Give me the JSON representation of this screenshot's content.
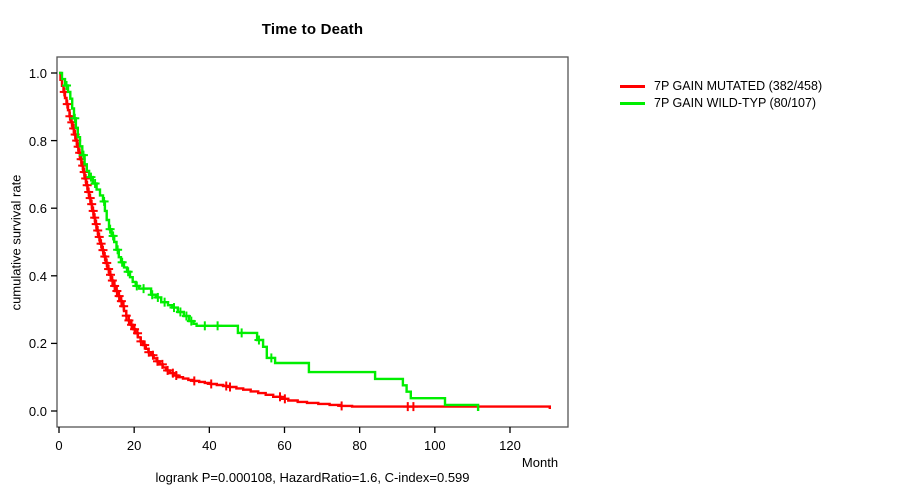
{
  "title": "Time to Death",
  "axes": {
    "x": {
      "label": "Month",
      "ticks": [
        0,
        20,
        40,
        60,
        80,
        100,
        120
      ]
    },
    "y": {
      "label": "cumulative survival rate",
      "ticks": [
        "0.0",
        "0.2",
        "0.4",
        "0.6",
        "0.8",
        "1.0"
      ]
    }
  },
  "legend": {
    "items": [
      {
        "label": "7P GAIN MUTATED (382/458)",
        "color": "#ff0000"
      },
      {
        "label": "7P GAIN WILD-TYP (80/107)",
        "color": "#00ee00"
      }
    ]
  },
  "footer": {
    "stats": "logrank P=0.000108, HazardRatio=1.6, C-index=0.599"
  },
  "chart_data": {
    "type": "line",
    "subtype": "kaplan-meier-step",
    "title": "Time to Death",
    "xlabel": "Month",
    "ylabel": "cumulative survival rate",
    "xlim": [
      0,
      135
    ],
    "ylim": [
      0.0,
      1.0
    ],
    "x_ticks": [
      0,
      20,
      40,
      60,
      80,
      100,
      120
    ],
    "y_ticks": [
      0.0,
      0.2,
      0.4,
      0.6,
      0.8,
      1.0
    ],
    "grid": false,
    "legend_position": "right-outside",
    "annotation": "logrank P=0.000108, HazardRatio=1.6, C-index=0.599",
    "series": [
      {
        "name": "7P GAIN MUTATED (382/458)",
        "color": "#ff0000",
        "steps": [
          [
            0,
            1.0
          ],
          [
            0.4,
            0.98
          ],
          [
            0.8,
            0.962
          ],
          [
            1.2,
            0.944
          ],
          [
            1.6,
            0.926
          ],
          [
            2,
            0.908
          ],
          [
            2.4,
            0.89
          ],
          [
            2.8,
            0.872
          ],
          [
            3.2,
            0.854
          ],
          [
            3.6,
            0.836
          ],
          [
            4,
            0.818
          ],
          [
            4.4,
            0.8
          ],
          [
            4.8,
            0.782
          ],
          [
            5.2,
            0.764
          ],
          [
            5.6,
            0.745
          ],
          [
            6,
            0.726
          ],
          [
            6.4,
            0.707
          ],
          [
            6.8,
            0.688
          ],
          [
            7.2,
            0.668
          ],
          [
            7.6,
            0.648
          ],
          [
            8,
            0.63
          ],
          [
            8.4,
            0.612
          ],
          [
            8.8,
            0.592
          ],
          [
            9.2,
            0.572
          ],
          [
            9.6,
            0.553
          ],
          [
            10,
            0.534
          ],
          [
            10.4,
            0.515
          ],
          [
            10.9,
            0.495
          ],
          [
            11.4,
            0.476
          ],
          [
            11.9,
            0.457
          ],
          [
            12.4,
            0.438
          ],
          [
            12.9,
            0.42
          ],
          [
            13.4,
            0.403
          ],
          [
            13.9,
            0.386
          ],
          [
            14.4,
            0.37
          ],
          [
            14.9,
            0.355
          ],
          [
            15.5,
            0.34
          ],
          [
            16.1,
            0.325
          ],
          [
            16.7,
            0.31
          ],
          [
            17.3,
            0.296
          ],
          [
            17.9,
            0.282
          ],
          [
            18.5,
            0.268
          ],
          [
            19.1,
            0.255
          ],
          [
            19.7,
            0.242
          ],
          [
            20.3,
            0.23
          ],
          [
            21,
            0.218
          ],
          [
            21.7,
            0.206
          ],
          [
            22.4,
            0.195
          ],
          [
            23.1,
            0.184
          ],
          [
            23.8,
            0.174
          ],
          [
            24.5,
            0.165
          ],
          [
            25.2,
            0.156
          ],
          [
            26,
            0.147
          ],
          [
            26.8,
            0.138
          ],
          [
            27.6,
            0.129
          ],
          [
            28.5,
            0.12
          ],
          [
            29.5,
            0.112
          ],
          [
            30.5,
            0.105
          ],
          [
            31.7,
            0.1
          ],
          [
            33,
            0.096
          ],
          [
            34.4,
            0.092
          ],
          [
            35.8,
            0.089
          ],
          [
            37.3,
            0.086
          ],
          [
            38.8,
            0.083
          ],
          [
            40.4,
            0.08
          ],
          [
            42,
            0.077
          ],
          [
            43.7,
            0.074
          ],
          [
            45.4,
            0.071
          ],
          [
            47.2,
            0.067
          ],
          [
            49,
            0.063
          ],
          [
            51,
            0.058
          ],
          [
            53,
            0.053
          ],
          [
            55,
            0.048
          ],
          [
            57,
            0.042
          ],
          [
            59,
            0.036
          ],
          [
            61,
            0.031
          ],
          [
            63.5,
            0.027
          ],
          [
            66,
            0.024
          ],
          [
            69,
            0.021
          ],
          [
            72,
            0.018
          ],
          [
            75,
            0.015
          ],
          [
            78,
            0.013
          ],
          [
            130.6,
            0.006
          ]
        ],
        "censor_months": [
          1.4,
          2.2,
          2.9,
          3.4,
          3.9,
          4.3,
          4.7,
          5.1,
          5.5,
          5.9,
          6.3,
          6.7,
          7.1,
          7.5,
          7.9,
          8.3,
          8.7,
          9.1,
          9.5,
          9.9,
          10.3,
          10.7,
          11.2,
          11.7,
          12.2,
          12.7,
          13.2,
          13.7,
          14.2,
          14.8,
          15.4,
          16,
          16.6,
          17.2,
          17.9,
          18.6,
          19.3,
          20.1,
          20.9,
          21.8,
          22.8,
          23.9,
          25,
          26.2,
          27.5,
          28.9,
          30.3,
          31.2,
          36,
          40.5,
          44.5,
          45.5,
          58.8,
          60.1,
          75.2,
          92.8,
          94.3
        ]
      },
      {
        "name": "7P GAIN WILD-TYP (80/107)",
        "color": "#00ee00",
        "steps": [
          [
            0,
            1.0
          ],
          [
            0.8,
            0.982
          ],
          [
            1.6,
            0.963
          ],
          [
            2.4,
            0.944
          ],
          [
            3,
            0.924
          ],
          [
            3.5,
            0.895
          ],
          [
            4,
            0.866
          ],
          [
            4.5,
            0.838
          ],
          [
            5,
            0.81
          ],
          [
            5.6,
            0.783
          ],
          [
            6.2,
            0.757
          ],
          [
            6.8,
            0.73
          ],
          [
            7.4,
            0.71
          ],
          [
            8,
            0.692
          ],
          [
            9,
            0.673
          ],
          [
            10,
            0.655
          ],
          [
            10.9,
            0.638
          ],
          [
            11.7,
            0.62
          ],
          [
            12.2,
            0.592
          ],
          [
            12.7,
            0.565
          ],
          [
            13.3,
            0.538
          ],
          [
            14,
            0.518
          ],
          [
            14.7,
            0.5
          ],
          [
            15.3,
            0.477
          ],
          [
            15.9,
            0.455
          ],
          [
            16.5,
            0.44
          ],
          [
            17.3,
            0.425
          ],
          [
            18.1,
            0.412
          ],
          [
            18.9,
            0.396
          ],
          [
            19.6,
            0.382
          ],
          [
            20.4,
            0.37
          ],
          [
            21.3,
            0.362
          ],
          [
            24.5,
            0.344
          ],
          [
            25.8,
            0.336
          ],
          [
            27.2,
            0.322
          ],
          [
            29,
            0.313
          ],
          [
            30.1,
            0.306
          ],
          [
            31.6,
            0.293
          ],
          [
            33.2,
            0.281
          ],
          [
            34.6,
            0.266
          ],
          [
            35.8,
            0.258
          ],
          [
            36.6,
            0.252
          ],
          [
            47.6,
            0.231
          ],
          [
            52.7,
            0.21
          ],
          [
            54.3,
            0.19
          ],
          [
            55.3,
            0.157
          ],
          [
            57.5,
            0.142
          ],
          [
            66.5,
            0.115
          ],
          [
            84.1,
            0.095
          ],
          [
            91.5,
            0.076
          ],
          [
            92.5,
            0.057
          ],
          [
            93.6,
            0.038
          ],
          [
            102.7,
            0.018
          ],
          [
            111.5,
            0
          ]
        ],
        "censor_months": [
          2,
          4.2,
          6.5,
          8.5,
          9.6,
          12,
          13.6,
          14.4,
          15.6,
          16.8,
          18.4,
          20.7,
          22.5,
          24.8,
          26.3,
          28.1,
          30.6,
          32.3,
          33.9,
          35.2,
          38.8,
          42.2,
          48.6,
          53.2,
          56.5
        ]
      }
    ]
  },
  "plot": {
    "box_color": "#555555",
    "tick_color": "#000000"
  }
}
